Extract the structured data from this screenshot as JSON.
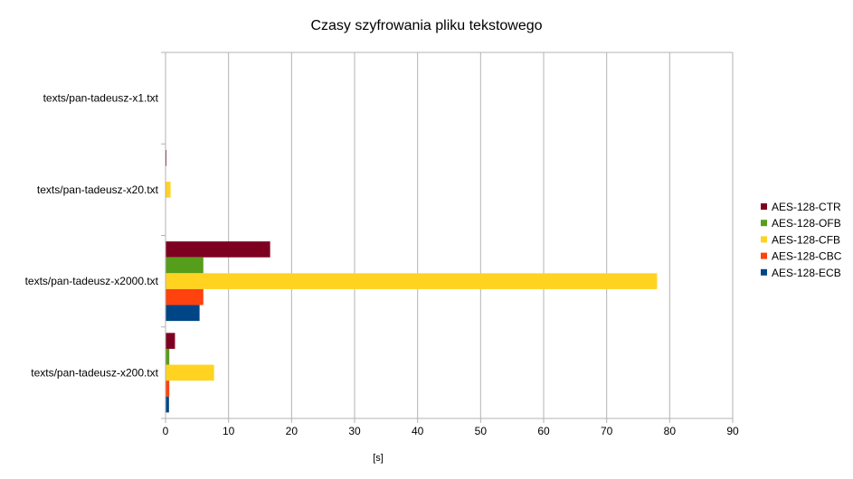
{
  "chart_data": {
    "type": "bar",
    "orientation": "horizontal",
    "title": "Czasy szyfrowania pliku tekstowego",
    "xlabel": "[s]",
    "ylabel": "",
    "xlim": [
      0,
      90
    ],
    "xticks": [
      0,
      10,
      20,
      30,
      40,
      50,
      60,
      70,
      80,
      90
    ],
    "grid": true,
    "legend_position": "right",
    "categories": [
      "texts/pan-tadeusz-x1.txt",
      "texts/pan-tadeusz-x20.txt",
      "texts/pan-tadeusz-x2000.txt",
      "texts/pan-tadeusz-x200.txt"
    ],
    "series": [
      {
        "name": "AES-128-CTR",
        "color": "#7e0021",
        "values": [
          0.01,
          0.15,
          16.6,
          1.5
        ]
      },
      {
        "name": "AES-128-OFB",
        "color": "#579d1c",
        "values": [
          0.01,
          0.05,
          6.0,
          0.6
        ]
      },
      {
        "name": "AES-128-CFB",
        "color": "#ffd320",
        "values": [
          0.02,
          0.8,
          78.0,
          7.7
        ]
      },
      {
        "name": "AES-128-CBC",
        "color": "#ff420e",
        "values": [
          0.01,
          0.05,
          6.0,
          0.6
        ]
      },
      {
        "name": "AES-128-ECB",
        "color": "#004586",
        "values": [
          0.01,
          0.05,
          5.4,
          0.55
        ]
      }
    ]
  }
}
